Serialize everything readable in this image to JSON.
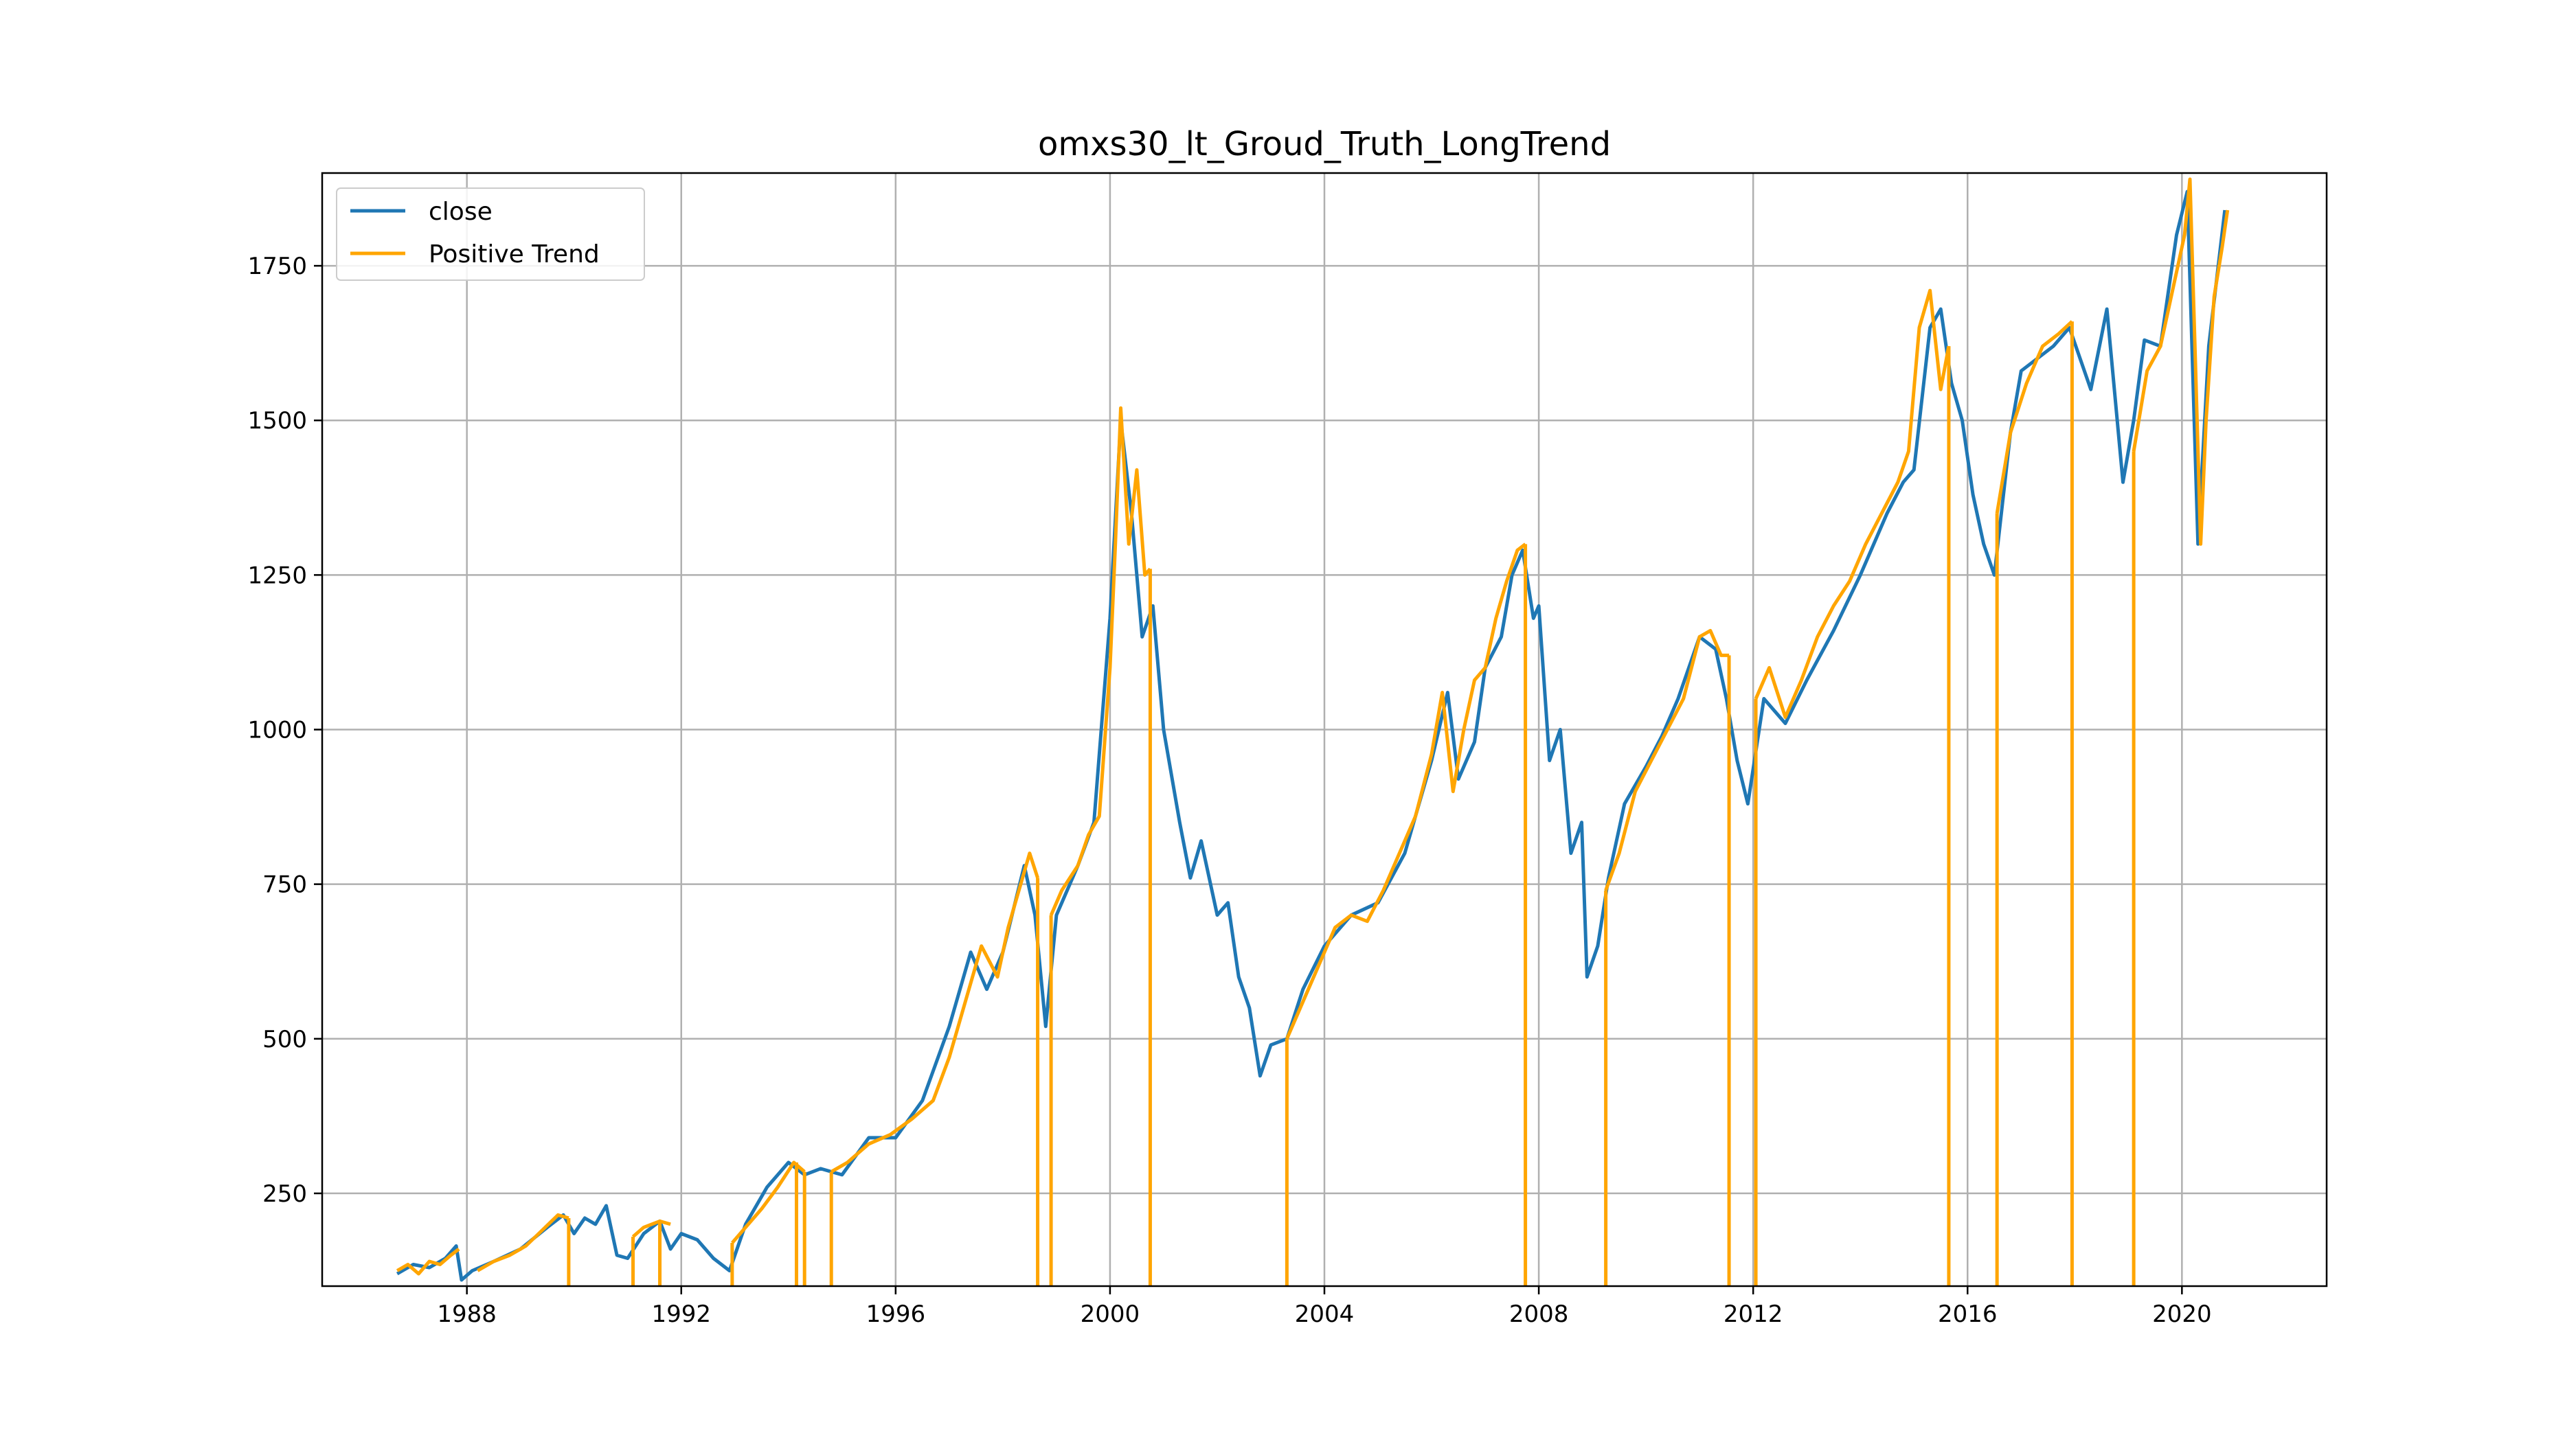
{
  "chart_data": {
    "type": "line",
    "title": "omxs30_lt_Groud_Truth_LongTrend",
    "xlabel": "",
    "ylabel": "",
    "xlim": [
      1985.3,
      2022.7
    ],
    "ylim": [
      100,
      1900
    ],
    "x_ticks": [
      1988,
      1992,
      1996,
      2000,
      2004,
      2008,
      2012,
      2016,
      2020
    ],
    "x_tick_labels": [
      "1988",
      "1992",
      "1996",
      "2000",
      "2004",
      "2008",
      "2012",
      "2016",
      "2020"
    ],
    "y_ticks": [
      250,
      500,
      750,
      1000,
      1250,
      1500,
      1750
    ],
    "y_tick_labels": [
      "250",
      "500",
      "750",
      "1000",
      "1250",
      "1500",
      "1750"
    ],
    "grid": true,
    "legend_position": "top-left",
    "colors": {
      "close": "#1f77b4",
      "positive": "#ffa500",
      "grid": "#b0b0b0"
    },
    "series": [
      {
        "name": "close",
        "x": [
          1986.7,
          1987.0,
          1987.3,
          1987.6,
          1987.8,
          1987.9,
          1988.1,
          1988.5,
          1989.0,
          1989.5,
          1989.8,
          1990.0,
          1990.2,
          1990.4,
          1990.6,
          1990.8,
          1991.0,
          1991.3,
          1991.6,
          1991.8,
          1992.0,
          1992.3,
          1992.6,
          1992.9,
          1993.2,
          1993.6,
          1994.0,
          1994.3,
          1994.6,
          1995.0,
          1995.5,
          1996.0,
          1996.5,
          1997.0,
          1997.4,
          1997.7,
          1998.0,
          1998.4,
          1998.6,
          1998.8,
          1999.0,
          1999.4,
          1999.7,
          2000.0,
          2000.2,
          2000.4,
          2000.6,
          2000.8,
          2001.0,
          2001.3,
          2001.5,
          2001.7,
          2002.0,
          2002.2,
          2002.4,
          2002.6,
          2002.8,
          2003.0,
          2003.3,
          2003.6,
          2004.0,
          2004.5,
          2005.0,
          2005.5,
          2006.0,
          2006.3,
          2006.5,
          2006.8,
          2007.0,
          2007.3,
          2007.5,
          2007.7,
          2007.9,
          2008.0,
          2008.2,
          2008.4,
          2008.6,
          2008.8,
          2008.9,
          2009.1,
          2009.3,
          2009.6,
          2010.0,
          2010.3,
          2010.6,
          2011.0,
          2011.3,
          2011.5,
          2011.7,
          2011.9,
          2012.2,
          2012.6,
          2013.0,
          2013.5,
          2014.0,
          2014.5,
          2014.8,
          2015.0,
          2015.3,
          2015.5,
          2015.7,
          2015.9,
          2016.1,
          2016.3,
          2016.5,
          2016.8,
          2017.0,
          2017.3,
          2017.6,
          2017.9,
          2018.1,
          2018.3,
          2018.6,
          2018.9,
          2019.1,
          2019.3,
          2019.6,
          2019.9,
          2020.1,
          2020.3,
          2020.5,
          2020.8
        ],
        "y": [
          120,
          135,
          130,
          145,
          165,
          110,
          125,
          140,
          160,
          195,
          215,
          185,
          210,
          200,
          230,
          150,
          145,
          185,
          205,
          160,
          185,
          175,
          145,
          125,
          200,
          260,
          300,
          280,
          290,
          280,
          340,
          340,
          400,
          520,
          640,
          580,
          640,
          780,
          700,
          520,
          700,
          780,
          850,
          1180,
          1500,
          1350,
          1150,
          1200,
          1000,
          850,
          760,
          820,
          700,
          720,
          600,
          550,
          440,
          490,
          500,
          580,
          650,
          700,
          720,
          800,
          950,
          1060,
          920,
          980,
          1100,
          1150,
          1250,
          1290,
          1180,
          1200,
          950,
          1000,
          800,
          850,
          600,
          650,
          760,
          880,
          940,
          990,
          1050,
          1150,
          1130,
          1050,
          950,
          880,
          1050,
          1010,
          1080,
          1160,
          1250,
          1350,
          1400,
          1420,
          1650,
          1680,
          1560,
          1500,
          1380,
          1300,
          1250,
          1480,
          1580,
          1600,
          1620,
          1650,
          1600,
          1550,
          1680,
          1400,
          1500,
          1630,
          1620,
          1800,
          1870,
          1300,
          1620,
          1840
        ]
      },
      {
        "name": "Positive Trend",
        "segments": [
          {
            "x": [
              1986.7,
              1986.9,
              1987.1,
              1987.3,
              1987.5,
              1987.7,
              1987.85
            ],
            "y": [
              125,
              135,
              120,
              140,
              135,
              150,
              160
            ]
          },
          {
            "x": [
              1988.2,
              1988.5,
              1988.8,
              1989.1,
              1989.4,
              1989.7,
              1989.9
            ],
            "y": [
              125,
              140,
              150,
              165,
              190,
              215,
              210
            ]
          },
          {
            "x": [
              1991.1,
              1991.3,
              1991.6,
              1991.8
            ],
            "y": [
              180,
              195,
              205,
              200
            ]
          },
          {
            "x": [
              1992.95,
              1993.2,
              1993.5,
              1993.8,
              1994.1,
              1994.3
            ],
            "y": [
              170,
              195,
              225,
              260,
              300,
              285
            ]
          },
          {
            "x": [
              1994.8,
              1995.1,
              1995.5,
              1995.9,
              1996.3,
              1996.7,
              1997.0,
              1997.3,
              1997.6,
              1997.9,
              1998.1,
              1998.3,
              1998.5,
              1998.65
            ],
            "y": [
              285,
              300,
              330,
              345,
              370,
              400,
              470,
              560,
              650,
              600,
              680,
              740,
              800,
              760
            ]
          },
          {
            "x": [
              1998.9,
              1999.1,
              1999.4,
              1999.6,
              1999.8,
              2000.0,
              2000.1,
              2000.2,
              2000.35,
              2000.5,
              2000.65,
              2000.75
            ],
            "y": [
              700,
              740,
              780,
              830,
              860,
              1100,
              1300,
              1520,
              1300,
              1420,
              1250,
              1260
            ]
          },
          {
            "x": [
              2003.3,
              2003.6,
              2003.9,
              2004.2,
              2004.5,
              2004.8,
              2005.1,
              2005.4,
              2005.7,
              2006.0,
              2006.2,
              2006.4,
              2006.6,
              2006.8,
              2007.0,
              2007.2,
              2007.4,
              2007.6,
              2007.75
            ],
            "y": [
              500,
              560,
              620,
              680,
              700,
              690,
              740,
              800,
              860,
              960,
              1060,
              900,
              1000,
              1080,
              1100,
              1180,
              1240,
              1290,
              1300
            ]
          },
          {
            "x": [
              2009.25,
              2009.5,
              2009.8,
              2010.1,
              2010.4,
              2010.7,
              2011.0,
              2011.2,
              2011.4,
              2011.55
            ],
            "y": [
              740,
              800,
              900,
              950,
              1000,
              1050,
              1150,
              1160,
              1120,
              1120
            ]
          },
          {
            "x": [
              2012.05,
              2012.3,
              2012.6,
              2012.9,
              2013.2,
              2013.5,
              2013.8,
              2014.1,
              2014.4,
              2014.7,
              2014.9,
              2015.1,
              2015.3,
              2015.5,
              2015.65
            ],
            "y": [
              1050,
              1100,
              1020,
              1080,
              1150,
              1200,
              1240,
              1300,
              1350,
              1400,
              1450,
              1650,
              1710,
              1550,
              1620
            ]
          },
          {
            "x": [
              2016.55,
              2016.8,
              2017.1,
              2017.4,
              2017.7,
              2017.95
            ],
            "y": [
              1350,
              1480,
              1560,
              1620,
              1640,
              1660
            ]
          },
          {
            "x": [
              2019.1,
              2019.35,
              2019.6,
              2019.85,
              2020.05,
              2020.15,
              2020.25,
              2020.35,
              2020.45,
              2020.6,
              2020.75,
              2020.85
            ],
            "y": [
              1450,
              1580,
              1620,
              1720,
              1800,
              1890,
              1600,
              1300,
              1500,
              1700,
              1780,
              1840
            ]
          }
        ],
        "drops_x": [
          1989.9,
          1991.1,
          1991.6,
          1992.95,
          1994.15,
          1994.3,
          1994.8,
          1998.65,
          1998.9,
          2000.75,
          2003.3,
          2007.75,
          2009.25,
          2011.55,
          2012.05,
          2015.65,
          2016.55,
          2017.95,
          2019.1
        ]
      }
    ]
  }
}
